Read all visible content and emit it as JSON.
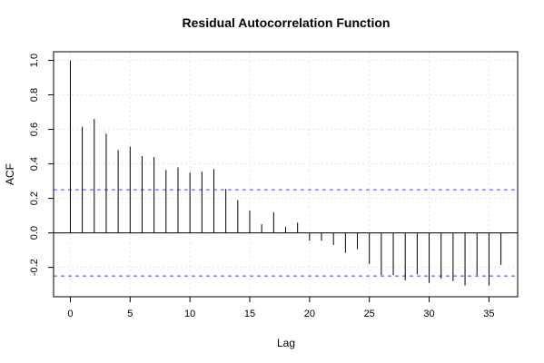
{
  "chart_data": {
    "type": "bar",
    "title": "Residual Autocorrelation Function",
    "xlabel": "Lag",
    "ylabel": "ACF",
    "xlim": [
      -1.4,
      37.4
    ],
    "ylim": [
      -0.37,
      1.05
    ],
    "x_ticks": [
      0,
      5,
      10,
      15,
      20,
      25,
      30,
      35
    ],
    "y_ticks": [
      -0.2,
      0.0,
      0.2,
      0.4,
      0.6,
      0.8,
      1.0
    ],
    "y_tick_labels": [
      "-0.2",
      "0.0",
      "0.2",
      "0.4",
      "0.6",
      "0.8",
      "1.0"
    ],
    "grid": true,
    "confidence_bound": 0.25,
    "confidence_color": "#4040ff",
    "lags": [
      0,
      1,
      2,
      3,
      4,
      5,
      6,
      7,
      8,
      9,
      10,
      11,
      12,
      13,
      14,
      15,
      16,
      17,
      18,
      19,
      20,
      21,
      22,
      23,
      24,
      25,
      26,
      27,
      28,
      29,
      30,
      31,
      32,
      33,
      34,
      35,
      36
    ],
    "values": [
      1.0,
      0.615,
      0.66,
      0.575,
      0.48,
      0.5,
      0.445,
      0.44,
      0.365,
      0.38,
      0.35,
      0.355,
      0.37,
      0.255,
      0.19,
      0.13,
      0.05,
      0.12,
      0.035,
      0.06,
      -0.045,
      -0.045,
      -0.07,
      -0.115,
      -0.095,
      -0.18,
      -0.245,
      -0.245,
      -0.275,
      -0.24,
      -0.29,
      -0.265,
      -0.28,
      -0.305,
      -0.245,
      -0.305,
      -0.185
    ]
  }
}
